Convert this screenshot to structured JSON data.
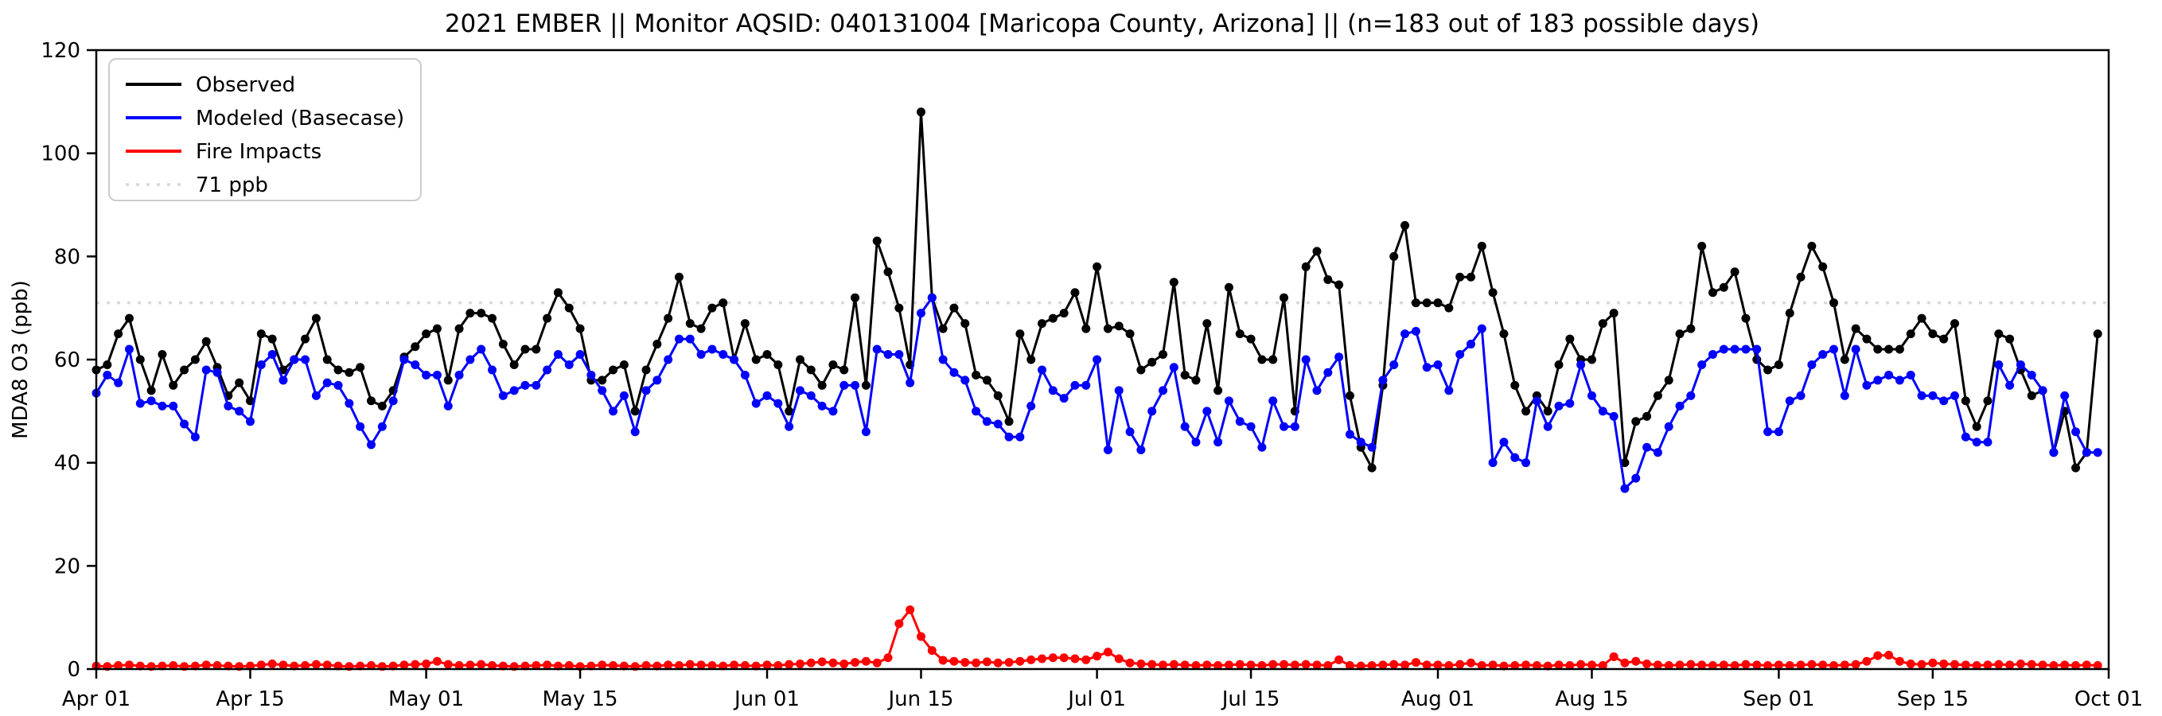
{
  "title": "2021 EMBER || Monitor AQSID: 040131004 [Maricopa County, Arizona] || (n=183 out of 183 possible days)",
  "y_axis": {
    "label": "MDA8 O3 (ppb)",
    "tick_labels": [
      "0",
      "20",
      "40",
      "60",
      "80",
      "100",
      "120"
    ],
    "tick_values": [
      0,
      20,
      40,
      60,
      80,
      100,
      120
    ],
    "min": 0,
    "max": 120
  },
  "x_axis": {
    "ticks": [
      {
        "label": "Apr 01",
        "day": 0
      },
      {
        "label": "Apr 15",
        "day": 14
      },
      {
        "label": "May 01",
        "day": 30
      },
      {
        "label": "May 15",
        "day": 44
      },
      {
        "label": "Jun 01",
        "day": 61
      },
      {
        "label": "Jun 15",
        "day": 75
      },
      {
        "label": "Jul 01",
        "day": 91
      },
      {
        "label": "Jul 15",
        "day": 105
      },
      {
        "label": "Aug 01",
        "day": 122
      },
      {
        "label": "Aug 15",
        "day": 136
      },
      {
        "label": "Sep 01",
        "day": 153
      },
      {
        "label": "Sep 15",
        "day": 167
      },
      {
        "label": "Oct 01",
        "day": 183
      }
    ]
  },
  "legend": {
    "items": [
      {
        "label": "Observed",
        "color": "#000000",
        "style": "solid"
      },
      {
        "label": "Modeled (Basecase)",
        "color": "#0000ff",
        "style": "solid"
      },
      {
        "label": "Fire Impacts",
        "color": "#ff0000",
        "style": "solid"
      },
      {
        "label": "71 ppb",
        "color": "#d9d9d9",
        "style": "dotted"
      }
    ]
  },
  "chart_data": {
    "type": "line",
    "title": "2021 EMBER || Monitor AQSID: 040131004 [Maricopa County, Arizona] || (n=183 out of 183 possible days)",
    "xlabel": "",
    "ylabel": "MDA8 O3 (ppb)",
    "ylim": [
      0,
      120
    ],
    "x_start": "Apr 01",
    "x_end": "Oct 01",
    "n_days": 183,
    "grid": false,
    "legend_position": "upper left",
    "reference_line": {
      "label": "71 ppb",
      "value": 71,
      "color": "#d9d9d9",
      "style": "dotted"
    },
    "series": [
      {
        "name": "Observed",
        "color": "#000000",
        "values": [
          58,
          59,
          65,
          68,
          60,
          54,
          61,
          55,
          58,
          60,
          63.5,
          58.5,
          53,
          55.5,
          52,
          65,
          64,
          58,
          60,
          64,
          68,
          60,
          58,
          57.5,
          58.5,
          52,
          51,
          54,
          60.5,
          62.5,
          65,
          66,
          56,
          66,
          69,
          69,
          68,
          63,
          59,
          62,
          62,
          68,
          73,
          70,
          66,
          56,
          56,
          58,
          59,
          50,
          58,
          63,
          68,
          76,
          67,
          66,
          70,
          71,
          60,
          67,
          60,
          61,
          59,
          50,
          60,
          58,
          55,
          59,
          58,
          72,
          55,
          83,
          77,
          70,
          59,
          108,
          72,
          66,
          70,
          67,
          57,
          56,
          53,
          48,
          65,
          60,
          67,
          68,
          69,
          73,
          66,
          78,
          66,
          66.5,
          65,
          58,
          59.5,
          61,
          75,
          57,
          56,
          67,
          54,
          74,
          65,
          64,
          60,
          60,
          72,
          50,
          78,
          81,
          75.5,
          74.5,
          53,
          43,
          39,
          55,
          80,
          86,
          71,
          71,
          71,
          70,
          76,
          76,
          82,
          73,
          65,
          55,
          50,
          53,
          50,
          59,
          64,
          60,
          60,
          67,
          69,
          40,
          48,
          49,
          53,
          56,
          65,
          66,
          82,
          73,
          74,
          77,
          68,
          60,
          58,
          59,
          69,
          76,
          82,
          78,
          71,
          60,
          66,
          64,
          62,
          62,
          62,
          65,
          68,
          65,
          64,
          67,
          52,
          47,
          52,
          65,
          64,
          58,
          53,
          54,
          42,
          50,
          39,
          42,
          65
        ]
      },
      {
        "name": "Modeled (Basecase)",
        "color": "#0000ff",
        "values": [
          53.5,
          57,
          55.5,
          62,
          51.5,
          52,
          51,
          51,
          47.5,
          45,
          58,
          57.5,
          51,
          50,
          48,
          59,
          61,
          56,
          60,
          60,
          53,
          55.5,
          55,
          51.5,
          47,
          43.5,
          47,
          52,
          60,
          59,
          57,
          57,
          51,
          57,
          60,
          62,
          58,
          53,
          54,
          55,
          55,
          58,
          61,
          59,
          61,
          57,
          54,
          50,
          53,
          46,
          54,
          56,
          60,
          64,
          64,
          61,
          62,
          61,
          60,
          57,
          51.5,
          53,
          51.5,
          47,
          54,
          53,
          51,
          50,
          55,
          55,
          46,
          62,
          61,
          61,
          55.5,
          69,
          72,
          60,
          57.5,
          56,
          50,
          48,
          47.5,
          45,
          45,
          51,
          58,
          54,
          52.5,
          55,
          55,
          60,
          42.5,
          54,
          46,
          42.5,
          50,
          54,
          58.5,
          47,
          44,
          50,
          44,
          52,
          48,
          47,
          43,
          52,
          47,
          47,
          60,
          54,
          57.5,
          60.5,
          45.5,
          44,
          43,
          56,
          59,
          65,
          65.5,
          58.5,
          59,
          54,
          61,
          63,
          66,
          40,
          44,
          41,
          40,
          52,
          47,
          51,
          51.5,
          59,
          53,
          50,
          49,
          35,
          37,
          43,
          42,
          47,
          51,
          53,
          59,
          61,
          62,
          62,
          62,
          62,
          46,
          46,
          52,
          53,
          59,
          61,
          62,
          53,
          62,
          55,
          56,
          57,
          56,
          57,
          53,
          53,
          52,
          53,
          45,
          44,
          44,
          59,
          55,
          59,
          57,
          54,
          42,
          53,
          46,
          42,
          42
        ]
      },
      {
        "name": "Fire Impacts",
        "color": "#ff0000",
        "values": [
          0.6,
          0.5,
          0.7,
          0.8,
          0.6,
          0.5,
          0.6,
          0.7,
          0.5,
          0.6,
          0.8,
          0.7,
          0.6,
          0.5,
          0.6,
          0.8,
          1.0,
          0.8,
          0.6,
          0.7,
          0.9,
          0.8,
          0.6,
          0.5,
          0.6,
          0.7,
          0.5,
          0.6,
          0.8,
          0.9,
          1.0,
          1.5,
          0.9,
          0.7,
          0.8,
          0.9,
          0.7,
          0.6,
          0.5,
          0.6,
          0.7,
          0.8,
          0.6,
          0.7,
          0.5,
          0.6,
          0.8,
          0.7,
          0.6,
          0.5,
          0.7,
          0.6,
          0.8,
          0.7,
          0.9,
          0.8,
          0.7,
          0.6,
          0.8,
          0.7,
          0.6,
          0.8,
          0.7,
          0.9,
          1.0,
          1.2,
          1.4,
          1.2,
          1.0,
          1.3,
          1.5,
          1.2,
          2.2,
          8.8,
          11.5,
          6.3,
          3.6,
          1.7,
          1.5,
          1.3,
          1.2,
          1.4,
          1.2,
          1.3,
          1.5,
          1.8,
          2.0,
          2.2,
          2.2,
          2.0,
          1.8,
          2.5,
          3.3,
          2.0,
          1.2,
          1.0,
          0.9,
          0.8,
          0.9,
          0.8,
          0.7,
          0.8,
          0.7,
          0.8,
          0.9,
          0.8,
          0.7,
          0.9,
          0.9,
          0.8,
          0.9,
          0.8,
          0.7,
          1.8,
          0.7,
          0.6,
          0.7,
          0.8,
          0.9,
          0.8,
          1.3,
          0.8,
          0.8,
          0.7,
          0.9,
          1.2,
          0.7,
          0.8,
          0.6,
          0.7,
          0.8,
          0.7,
          0.6,
          0.8,
          0.7,
          0.9,
          0.8,
          0.7,
          2.4,
          1.2,
          1.5,
          1.0,
          0.8,
          0.7,
          0.8,
          0.9,
          0.8,
          0.7,
          0.8,
          0.7,
          0.9,
          0.8,
          0.7,
          0.8,
          0.7,
          0.8,
          0.9,
          0.8,
          0.7,
          0.8,
          0.9,
          1.5,
          2.6,
          2.7,
          1.5,
          1.0,
          0.9,
          1.2,
          1.0,
          0.9,
          0.8,
          0.7,
          0.8,
          0.9,
          0.8,
          1.0,
          0.9,
          0.8,
          0.7,
          0.8,
          0.7,
          0.8,
          0.7
        ]
      }
    ]
  }
}
